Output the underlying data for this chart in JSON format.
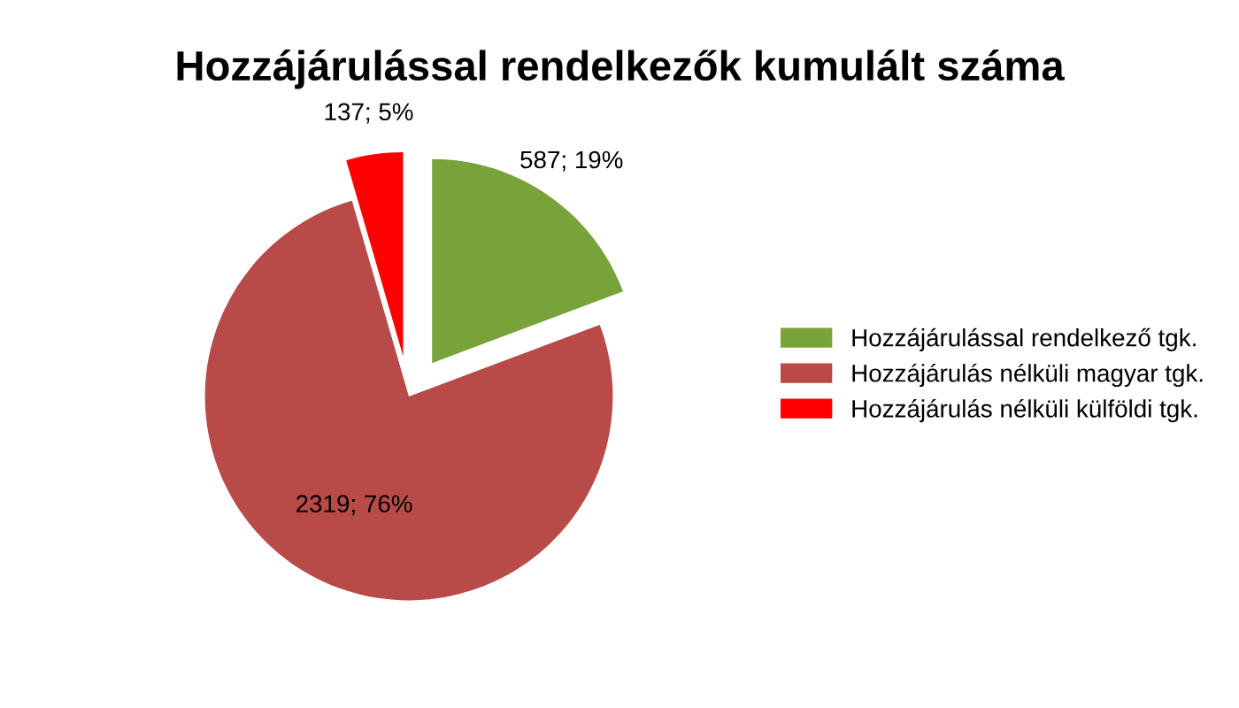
{
  "chart_data": {
    "type": "pie",
    "title": "Hozzájárulással rendelkezők kumulált száma",
    "categories": [
      "Hozzájárulással rendelkező tgk.",
      "Hozzájárulás nélküli magyar tgk.",
      "Hozzájárulás nélküli külföldi tgk."
    ],
    "values": [
      587,
      2319,
      137
    ],
    "colors": [
      "#77a33a",
      "#b84a47",
      "#ff0000"
    ],
    "value_labels": [
      "587; 19%",
      "2319; 76%",
      "137; 5%"
    ],
    "legend": "right"
  }
}
